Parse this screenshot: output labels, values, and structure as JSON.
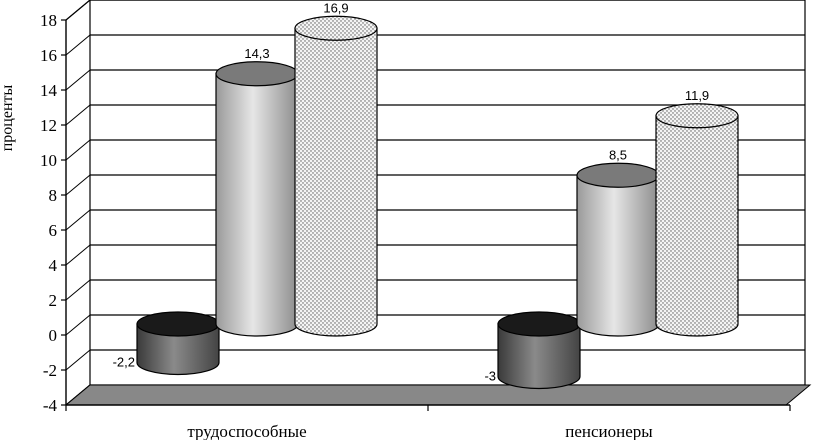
{
  "chart_data": {
    "type": "bar",
    "style": "3d-cylinder",
    "categories": [
      "трудоспособные",
      "пенсионеры"
    ],
    "series": [
      {
        "values": [
          -2.2,
          -3
        ],
        "labels": [
          "-2,2",
          "-3"
        ],
        "fill": "dark-gray"
      },
      {
        "values": [
          14.3,
          8.5
        ],
        "labels": [
          "14,3",
          "8,5"
        ],
        "fill": "light-gray-gradient"
      },
      {
        "values": [
          16.9,
          11.9
        ],
        "labels": [
          "16,9",
          "11,9"
        ],
        "fill": "dotted"
      }
    ],
    "title": "",
    "xlabel": "",
    "ylabel": "проценты",
    "ylim": [
      -4,
      18
    ],
    "yticks": [
      "-4",
      "-2",
      "0",
      "2",
      "4",
      "6",
      "8",
      "10",
      "12",
      "14",
      "16",
      "18"
    ],
    "grid": true,
    "legend": "none"
  }
}
